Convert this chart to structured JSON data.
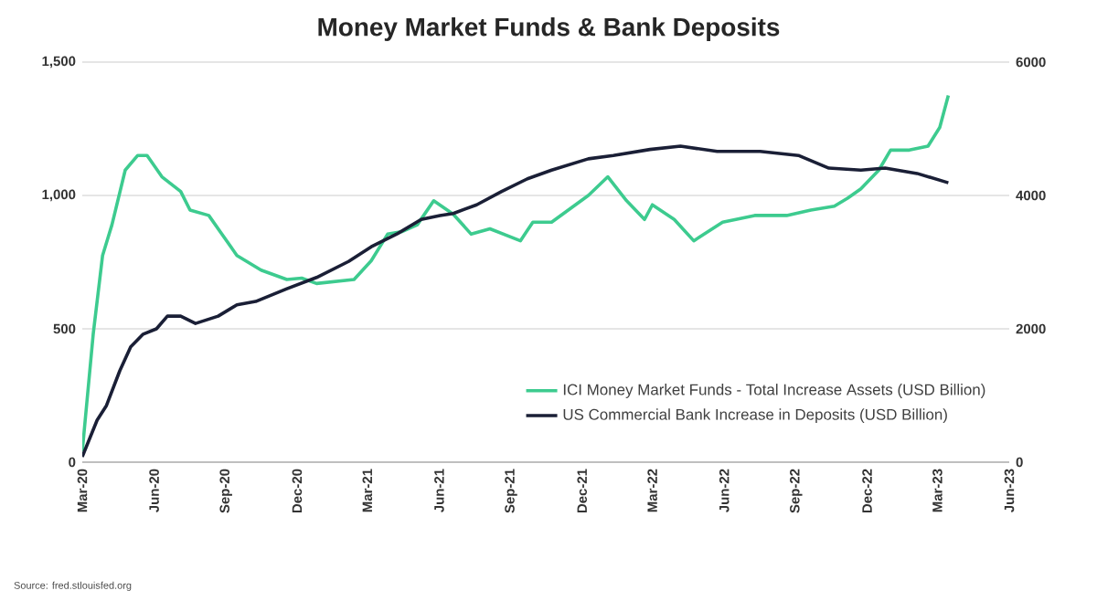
{
  "chart_data": {
    "type": "line",
    "title": "Money Market Funds & Bank Deposits",
    "annotations": [
      "Source: fred.stlouisfed.org"
    ],
    "xlim": [
      "2020-03-01",
      "2023-06-01"
    ],
    "xticks": [
      {
        "value": "2020-03-01",
        "label": "Mar-20"
      },
      {
        "value": "2020-06-01",
        "label": "Jun-20"
      },
      {
        "value": "2020-09-01",
        "label": "Sep-20"
      },
      {
        "value": "2020-12-01",
        "label": "Dec-20"
      },
      {
        "value": "2021-03-01",
        "label": "Mar-21"
      },
      {
        "value": "2021-06-01",
        "label": "Jun-21"
      },
      {
        "value": "2021-09-01",
        "label": "Sep-21"
      },
      {
        "value": "2021-12-01",
        "label": "Dec-21"
      },
      {
        "value": "2022-03-01",
        "label": "Mar-22"
      },
      {
        "value": "2022-06-01",
        "label": "Jun-22"
      },
      {
        "value": "2022-09-01",
        "label": "Sep-22"
      },
      {
        "value": "2022-12-01",
        "label": "Dec-22"
      },
      {
        "value": "2023-03-01",
        "label": "Mar-23"
      },
      {
        "value": "2023-06-01",
        "label": "Jun-23"
      }
    ],
    "ylim": [
      0,
      1500
    ],
    "yticks": [
      0,
      500,
      {
        "value": 1000,
        "label": "1,000"
      },
      {
        "value": 1500,
        "label": "1,500"
      }
    ],
    "y2lim": [
      0,
      6000
    ],
    "y2ticks": [
      0,
      2000,
      4000,
      6000
    ],
    "grid": "y",
    "legend": "bottom right",
    "series": [
      {
        "name": "ICI Money Market Funds - Total Increase Assets (USD Billion)",
        "color": "#3dcb8f",
        "x": [
          "2020-03-01",
          "2020-03-15",
          "2020-03-27",
          "2020-04-08",
          "2020-04-25",
          "2020-05-11",
          "2020-05-23",
          "2020-06-11",
          "2020-07-05",
          "2020-07-17",
          "2020-08-10",
          "2020-09-15",
          "2020-10-16",
          "2020-11-18",
          "2020-12-07",
          "2020-12-26",
          "2021-02-12",
          "2021-03-06",
          "2021-03-27",
          "2021-04-15",
          "2021-05-04",
          "2021-05-25",
          "2021-06-19",
          "2021-07-12",
          "2021-08-05",
          "2021-09-13",
          "2021-09-29",
          "2021-10-23",
          "2021-12-09",
          "2022-01-03",
          "2022-01-27",
          "2022-02-19",
          "2022-03-01",
          "2022-03-29",
          "2022-04-23",
          "2022-05-30",
          "2022-07-10",
          "2022-08-20",
          "2022-09-20",
          "2022-10-20",
          "2022-11-06",
          "2022-11-23",
          "2022-12-16",
          "2022-12-31",
          "2023-01-24",
          "2023-02-17",
          "2023-03-04",
          "2023-03-15"
        ],
        "values": [
          40,
          480,
          775,
          890,
          1095,
          1150,
          1150,
          1070,
          1015,
          945,
          925,
          775,
          720,
          685,
          690,
          670,
          685,
          755,
          855,
          865,
          890,
          980,
          930,
          855,
          875,
          830,
          900,
          900,
          1000,
          1070,
          980,
          910,
          965,
          910,
          830,
          900,
          925,
          925,
          945,
          960,
          990,
          1025,
          1095,
          1170,
          1170,
          1185,
          1255,
          1375
        ]
      },
      {
        "name": "US Commercial Bank Increase in Deposits (USD Billion)",
        "color": "#1a1f36",
        "axis": "y2",
        "x": [
          "2020-03-01",
          "2020-03-20",
          "2020-04-01",
          "2020-04-18",
          "2020-05-02",
          "2020-05-18",
          "2020-06-04",
          "2020-06-18",
          "2020-07-05",
          "2020-07-24",
          "2020-08-22",
          "2020-09-15",
          "2020-10-09",
          "2020-11-18",
          "2020-12-26",
          "2021-02-05",
          "2021-03-06",
          "2021-04-09",
          "2021-05-09",
          "2021-06-02",
          "2021-06-19",
          "2021-07-19",
          "2021-08-20",
          "2021-09-22",
          "2021-10-23",
          "2021-12-09",
          "2022-01-10",
          "2022-02-26",
          "2022-04-06",
          "2022-05-23",
          "2022-07-17",
          "2022-09-04",
          "2022-10-13",
          "2022-11-23",
          "2022-12-24",
          "2023-02-03",
          "2023-03-15"
        ],
        "values": [
          80,
          630,
          850,
          1370,
          1730,
          1920,
          2000,
          2190,
          2190,
          2080,
          2190,
          2360,
          2410,
          2600,
          2770,
          3010,
          3230,
          3430,
          3640,
          3700,
          3730,
          3860,
          4060,
          4250,
          4380,
          4550,
          4600,
          4690,
          4740,
          4660,
          4660,
          4600,
          4410,
          4380,
          4410,
          4330,
          4190
        ]
      }
    ]
  }
}
